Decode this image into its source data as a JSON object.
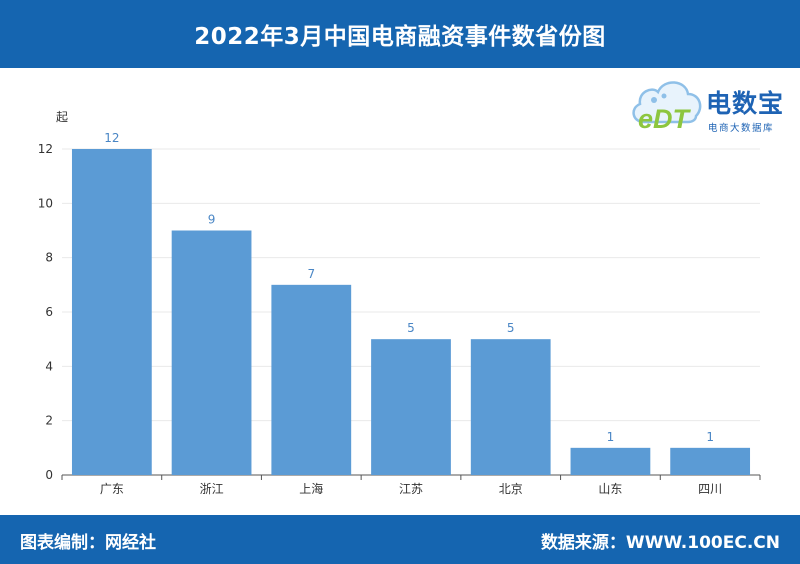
{
  "header": {
    "title": "2022年3月中国电商融资事件数省份图"
  },
  "footer": {
    "left": "图表编制：网经社",
    "right": "数据来源：WWW.100EC.CN"
  },
  "logo": {
    "name": "电数宝",
    "subtitle": "电商大数据库",
    "mark_text": "eDT"
  },
  "colors": {
    "header_bg": "#1565b0",
    "bar": "#5b9bd5",
    "label": "#4a86c5",
    "logo_blue": "#1e63b4",
    "logo_green": "#8dc63f"
  },
  "chart_data": {
    "type": "bar",
    "title": "",
    "xlabel": "",
    "ylabel": "起",
    "categories": [
      "广东",
      "浙江",
      "上海",
      "江苏",
      "北京",
      "山东",
      "四川"
    ],
    "values": [
      12,
      9,
      7,
      5,
      5,
      1,
      1
    ],
    "ylim": [
      0,
      12
    ],
    "yticks": [
      0,
      2,
      4,
      6,
      8,
      10,
      12
    ],
    "grid": true,
    "data_labels": true
  }
}
